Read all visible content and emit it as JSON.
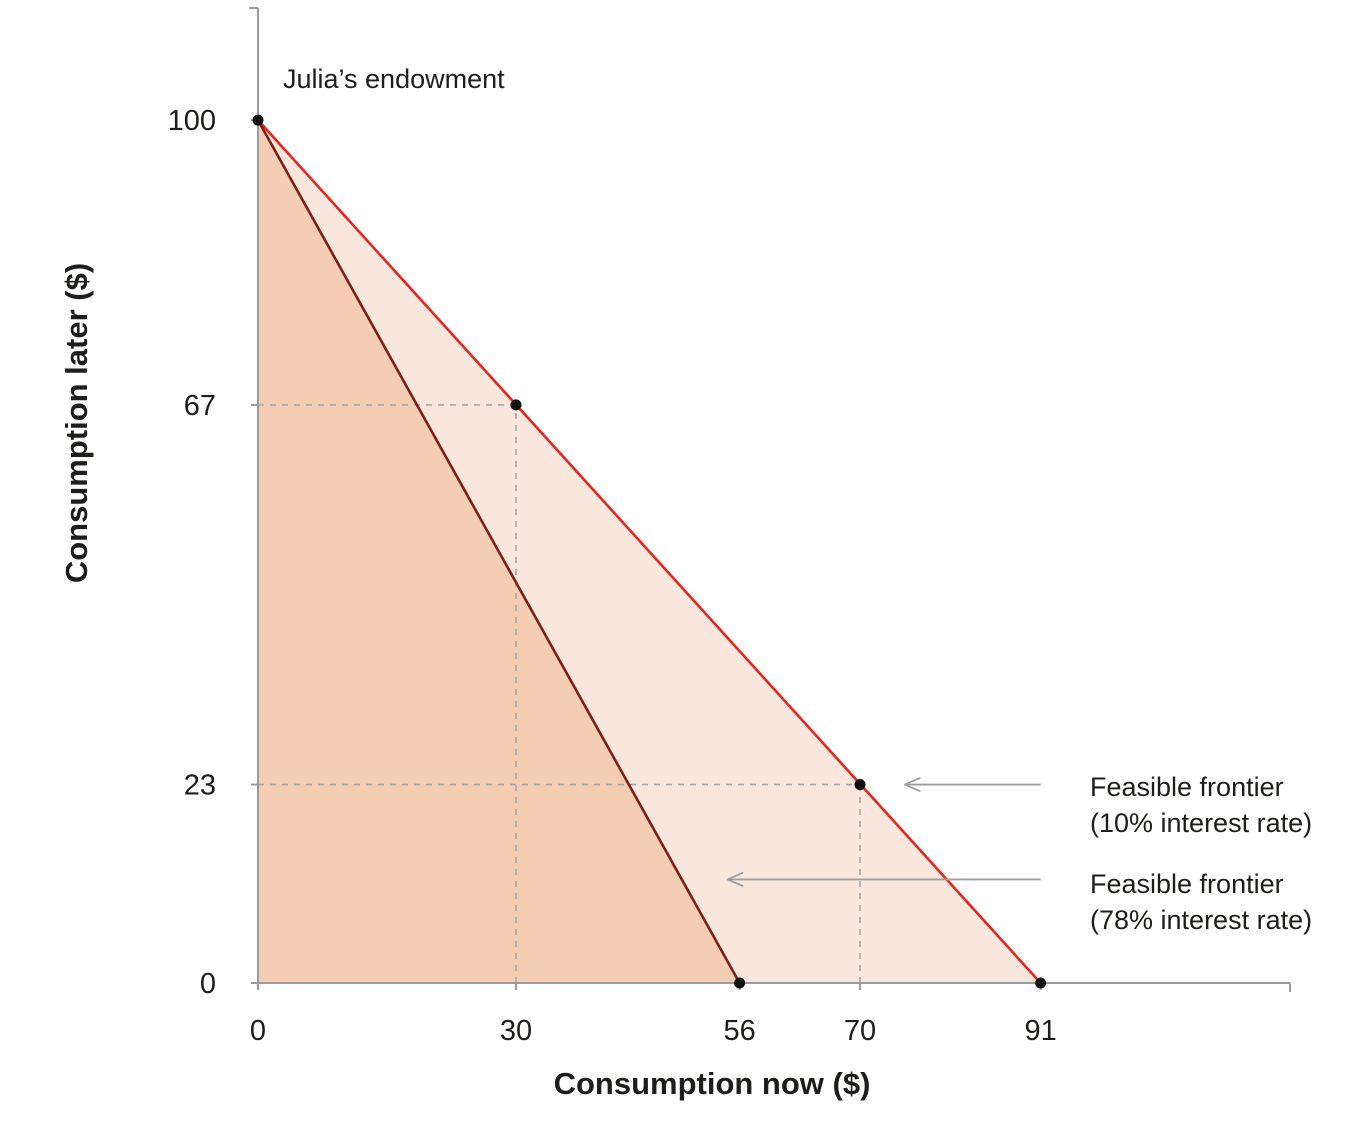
{
  "chart_data": {
    "type": "line",
    "title": "",
    "xlabel": "Consumption now ($)",
    "ylabel": "Consumption later ($)",
    "xlim": [
      0,
      120
    ],
    "ylim": [
      0,
      113
    ],
    "x_ticks": [
      0,
      30,
      56,
      70,
      91
    ],
    "y_ticks": [
      0,
      23,
      67,
      100
    ],
    "grid": "off",
    "legend_position": "none",
    "series": [
      {
        "name": "Feasible frontier (10% interest rate)",
        "x": [
          0,
          91
        ],
        "y": [
          100,
          0
        ],
        "line_color": "#e5261f",
        "fill_color": "#f9e6dd"
      },
      {
        "name": "Feasible frontier (78% interest rate)",
        "x": [
          0,
          56
        ],
        "y": [
          100,
          0
        ],
        "line_color": "#7c2017",
        "fill_color": "#f4cdb2"
      }
    ],
    "points": [
      {
        "x": 0,
        "y": 100,
        "label": "Julia’s endowment"
      },
      {
        "x": 30,
        "y": 67
      },
      {
        "x": 70,
        "y": 23
      },
      {
        "x": 56,
        "y": 0
      },
      {
        "x": 91,
        "y": 0
      }
    ],
    "guides": [
      {
        "x": 30,
        "y": 67
      },
      {
        "x": 70,
        "y": 23
      }
    ],
    "annotations": [
      {
        "line1": "Feasible frontier",
        "line2": "(10% interest rate)",
        "arrow": {
          "y": 23,
          "x_tail": 91,
          "x_head": 75.2
        }
      },
      {
        "line1": "Feasible frontier",
        "line2": "(78% interest rate)",
        "arrow": {
          "y": 12,
          "x_tail": 91,
          "x_head": 54.6
        }
      }
    ],
    "colors": {
      "axis": "#9b9b9b",
      "guide": "#a6a6a6",
      "arrow": "#9e9e9e",
      "point": "#111111",
      "text": "#1d1d1b"
    }
  }
}
